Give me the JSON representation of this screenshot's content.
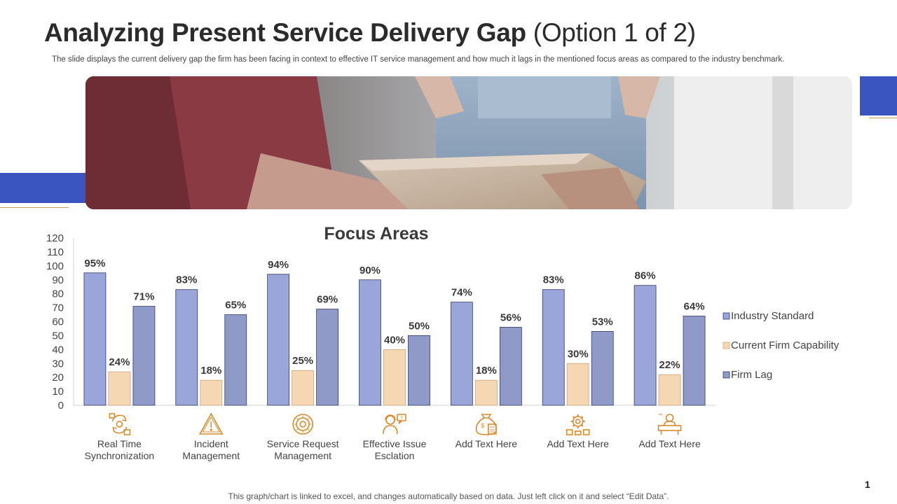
{
  "slide": {
    "title_main": "Analyzing Present Service Delivery Gap",
    "title_sub": "(Option 1 of 2)",
    "description": "The slide displays the current delivery gap the firm has been facing in context to effective IT service management and how much it lags in the mentioned focus areas as compared to the industry benchmark.",
    "footer": "This graph/chart is linked to excel, and changes automatically based on data. Just left click on it and select “Edit Data”.",
    "page_number": "1"
  },
  "colors": {
    "accent_blue": "#3b55c0",
    "accent_gold": "#c8a04a",
    "series_industry": "#9aa5d9",
    "series_current": "#f6d7b4",
    "series_lag": "#8f9ac8",
    "icon_orange": "#d98a2b"
  },
  "chart_data": {
    "type": "bar",
    "title": "Focus Areas",
    "categories": [
      [
        "Real Time",
        "Synchronization"
      ],
      [
        "Incident",
        "Management"
      ],
      [
        "Service Request",
        "Management"
      ],
      [
        "Effective Issue",
        "Esclation"
      ],
      [
        "Add Text Here"
      ],
      [
        "Add Text Here"
      ],
      [
        "Add Text Here"
      ]
    ],
    "category_icons": [
      "sync-icon",
      "warning-icon",
      "settings-target-icon",
      "support-agent-icon",
      "money-bag-icon",
      "gear-coins-icon",
      "desk-agent-icon"
    ],
    "series": [
      {
        "name": "Industry Standard",
        "values": [
          95,
          83,
          94,
          90,
          74,
          83,
          86
        ]
      },
      {
        "name": "Current Firm Capability",
        "values": [
          24,
          18,
          25,
          40,
          18,
          30,
          22
        ]
      },
      {
        "name": "Firm Lag",
        "values": [
          71,
          65,
          69,
          50,
          56,
          53,
          64
        ]
      }
    ],
    "ylim": [
      0,
      120
    ],
    "yticks": [
      0,
      10,
      20,
      30,
      40,
      50,
      60,
      70,
      80,
      90,
      100,
      110,
      120
    ],
    "value_suffix": "%",
    "legend_position": "right",
    "grid": false
  }
}
